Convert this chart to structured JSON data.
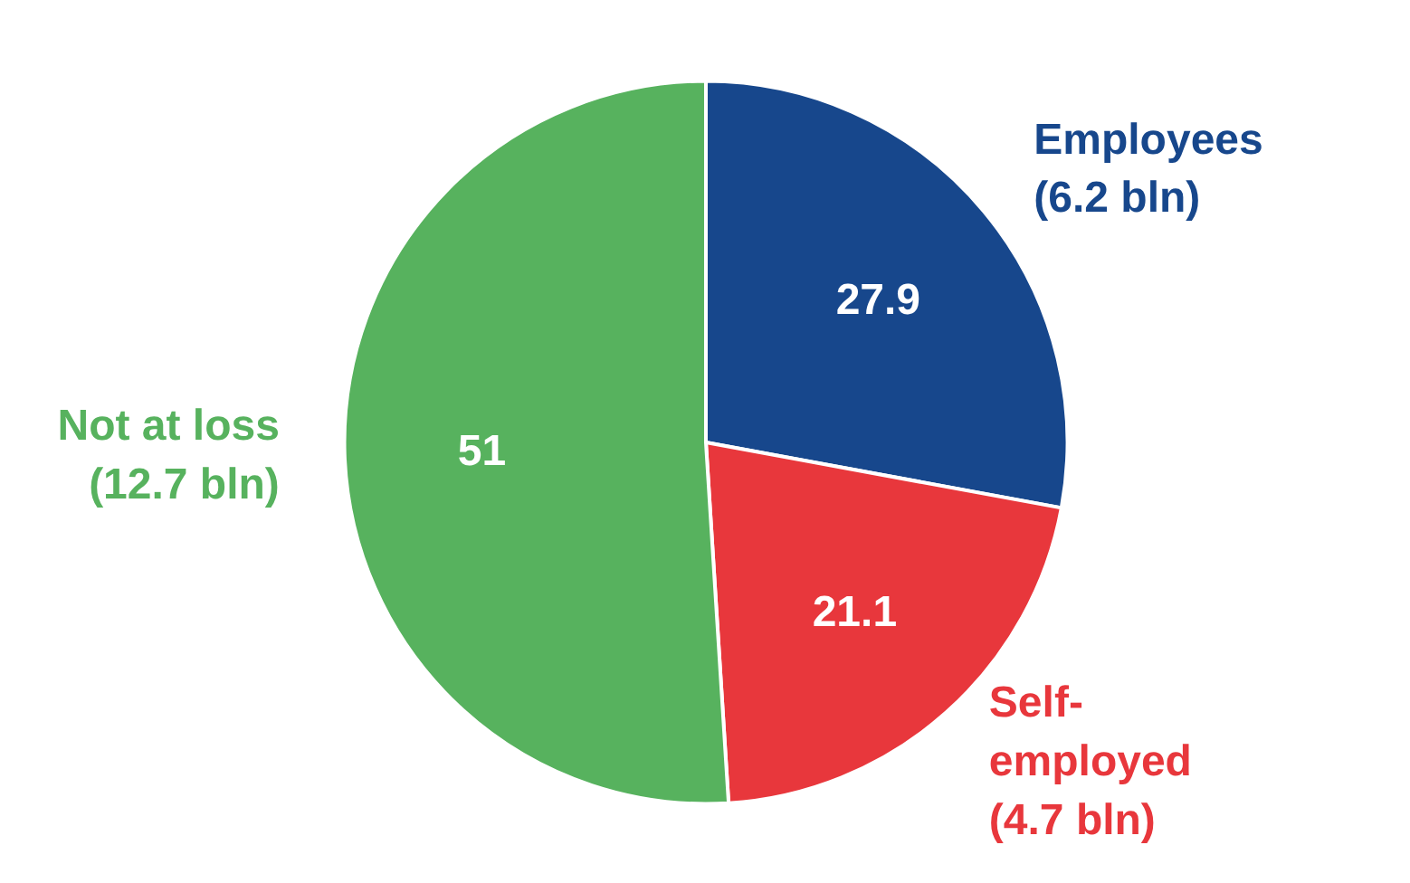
{
  "chart_data": {
    "type": "pie",
    "categories": [
      "Employees\n(6.2 bln)",
      "Self-\nemployed\n(4.7 bln)",
      "Not at loss\n(12.7 bln)"
    ],
    "values": [
      27.9,
      21.1,
      51
    ],
    "colors": [
      "#17478c",
      "#e8373c",
      "#57b25e"
    ],
    "data_labels": true
  }
}
